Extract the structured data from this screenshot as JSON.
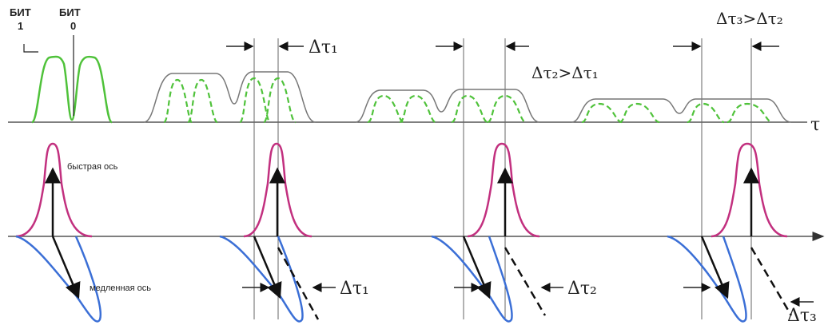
{
  "labels": {
    "bit1_word": "БИТ",
    "bit1_num": "1",
    "bit0_word": "БИТ",
    "bit0_num": "0",
    "tau_axis": "τ",
    "fast_axis": "быстрая ось",
    "slow_axis": "медленная ось",
    "dt1_top": "Δτ₁",
    "dt2_gt_dt1": "Δτ₂>Δτ₁",
    "dt3_gt_dt2": "Δτ₃>Δτ₂",
    "dt1_bottom": "Δτ₁",
    "dt2_bottom": "Δτ₂",
    "dt3_bottom": "Δτ₃"
  },
  "colors": {
    "pulse_green": "#4fc23a",
    "fast_magenta": "#c2307f",
    "slow_blue": "#3b6fd6",
    "axis_gray": "#555555",
    "ink": "#222222"
  }
}
